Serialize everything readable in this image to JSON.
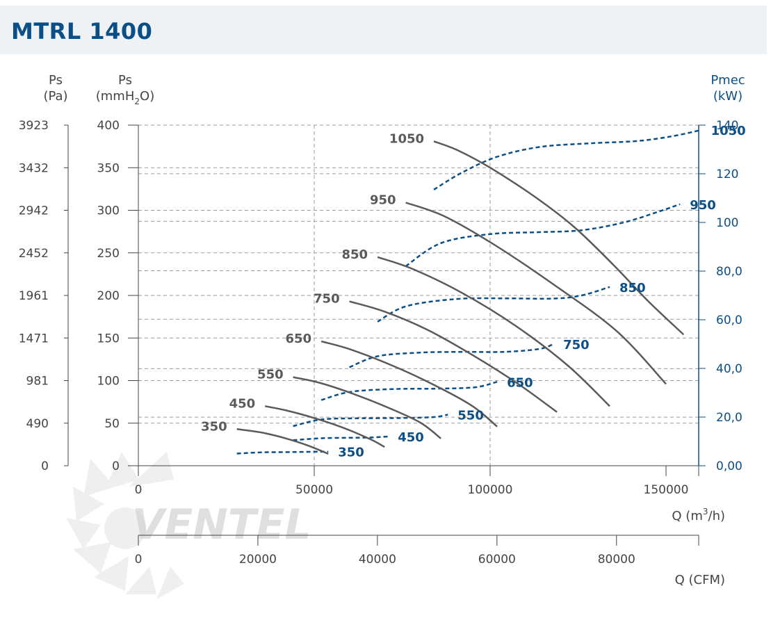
{
  "title": "MTRL 1400",
  "colors": {
    "header_bg": "#eef2f5",
    "title": "#0b4f86",
    "pressure_curve": "#5a5a5a",
    "power_curve": "#0b4f86",
    "axis": "#444444",
    "grid": "#9a9a9a",
    "watermark": "#c8c8c8",
    "watermark_accent": "#a9c3df"
  },
  "watermark": "VENTEL",
  "chart_data": {
    "type": "line",
    "axes": {
      "left_pa": {
        "label_line1": "Ps",
        "label_line2": "(Pa)",
        "ticks": [
          "3923",
          "3432",
          "2942",
          "2452",
          "1961",
          "1471",
          "981",
          "490",
          "0"
        ]
      },
      "left_mm": {
        "label_line1": "Ps",
        "label_line2_a": "(mmH",
        "label_line2_sub": "2",
        "label_line2_b": "O)",
        "range": [
          0,
          400
        ],
        "ticks": [
          400,
          350,
          300,
          250,
          200,
          150,
          100,
          50,
          0
        ]
      },
      "right_kw": {
        "label_line1": "Pmec",
        "label_line2": "(kW)",
        "range": [
          0,
          140
        ],
        "ticks": [
          "140",
          "120",
          "100",
          "80,0",
          "60,0",
          "40,0",
          "20,0",
          "0,00"
        ]
      },
      "x_m3h": {
        "label_a": "Q (m",
        "label_sup": "3",
        "label_b": "/h)",
        "range": [
          0,
          160000
        ],
        "ticks": [
          "0",
          "50000",
          "100000",
          "150000"
        ]
      },
      "x_cfm": {
        "label": "Q (CFM)",
        "range": [
          0,
          94170
        ],
        "ticks": [
          "0",
          "20000",
          "40000",
          "60000",
          "80000"
        ]
      }
    },
    "grid_vertical_at_q": [
      50000,
      100000
    ],
    "grid_horizontal_at_ps": [
      400,
      350,
      343,
      300,
      287,
      250,
      229,
      200,
      172,
      150,
      114,
      100,
      57,
      50
    ],
    "series_pressure": [
      {
        "name": "350",
        "points": [
          [
            28000,
            43
          ],
          [
            35000,
            39
          ],
          [
            42000,
            32
          ],
          [
            48000,
            24
          ],
          [
            54000,
            14
          ]
        ]
      },
      {
        "name": "450",
        "points": [
          [
            36000,
            70
          ],
          [
            42000,
            65
          ],
          [
            50000,
            56
          ],
          [
            58000,
            45
          ],
          [
            66000,
            31
          ],
          [
            70000,
            22
          ]
        ]
      },
      {
        "name": "550",
        "points": [
          [
            44000,
            104
          ],
          [
            51000,
            98
          ],
          [
            60000,
            86
          ],
          [
            70000,
            70
          ],
          [
            80000,
            51
          ],
          [
            86000,
            32
          ]
        ]
      },
      {
        "name": "650",
        "points": [
          [
            52000,
            146
          ],
          [
            60000,
            137
          ],
          [
            72000,
            118
          ],
          [
            84000,
            95
          ],
          [
            95000,
            70
          ],
          [
            102000,
            46
          ]
        ]
      },
      {
        "name": "750",
        "points": [
          [
            60000,
            193
          ],
          [
            70000,
            181
          ],
          [
            82000,
            160
          ],
          [
            95000,
            130
          ],
          [
            108000,
            96
          ],
          [
            119000,
            63
          ]
        ]
      },
      {
        "name": "850",
        "points": [
          [
            68000,
            245
          ],
          [
            78000,
            231
          ],
          [
            92000,
            203
          ],
          [
            107000,
            165
          ],
          [
            122000,
            118
          ],
          [
            134000,
            70
          ]
        ]
      },
      {
        "name": "950",
        "points": [
          [
            76000,
            309
          ],
          [
            87000,
            293
          ],
          [
            101000,
            260
          ],
          [
            118000,
            213
          ],
          [
            136000,
            158
          ],
          [
            150000,
            96
          ]
        ]
      },
      {
        "name": "1050",
        "points": [
          [
            84000,
            381
          ],
          [
            91000,
            370
          ],
          [
            100000,
            350
          ],
          [
            113000,
            315
          ],
          [
            124000,
            280
          ],
          [
            135000,
            236
          ],
          [
            145000,
            193
          ],
          [
            155000,
            154
          ]
        ]
      }
    ],
    "series_power": [
      {
        "name": "350",
        "points": [
          [
            28000,
            5.0
          ],
          [
            35000,
            5.5
          ],
          [
            42000,
            5.6
          ],
          [
            48000,
            5.7
          ],
          [
            54000,
            5.8
          ]
        ]
      },
      {
        "name": "450",
        "points": [
          [
            44000,
            10.5
          ],
          [
            52000,
            11.3
          ],
          [
            60000,
            11.5
          ],
          [
            66000,
            11.6
          ],
          [
            71000,
            12.0
          ]
        ]
      },
      {
        "name": "550",
        "points": [
          [
            44000,
            16.3
          ],
          [
            52000,
            19.0
          ],
          [
            62000,
            19.5
          ],
          [
            74000,
            19.6
          ],
          [
            84000,
            20.0
          ],
          [
            88000,
            21.0
          ]
        ]
      },
      {
        "name": "650",
        "points": [
          [
            52000,
            27.0
          ],
          [
            60000,
            30.3
          ],
          [
            72000,
            31.5
          ],
          [
            86000,
            31.7
          ],
          [
            96000,
            32.3
          ],
          [
            102000,
            34.5
          ]
        ]
      },
      {
        "name": "750",
        "points": [
          [
            60000,
            40.5
          ],
          [
            68000,
            45.0
          ],
          [
            80000,
            46.5
          ],
          [
            92000,
            46.8
          ],
          [
            104000,
            46.8
          ],
          [
            114000,
            48.0
          ],
          [
            118000,
            50.0
          ]
        ]
      },
      {
        "name": "850",
        "points": [
          [
            68000,
            59.2
          ],
          [
            76000,
            65.5
          ],
          [
            90000,
            68.5
          ],
          [
            104000,
            68.8
          ],
          [
            118000,
            68.7
          ],
          [
            126000,
            70.0
          ],
          [
            134000,
            73.5
          ]
        ]
      },
      {
        "name": "950",
        "points": [
          [
            76000,
            82.0
          ],
          [
            86000,
            91.5
          ],
          [
            100000,
            95.2
          ],
          [
            114000,
            96.0
          ],
          [
            126000,
            96.8
          ],
          [
            138000,
            100.0
          ],
          [
            148000,
            104.5
          ],
          [
            154000,
            107.5
          ]
        ]
      },
      {
        "name": "1050",
        "points": [
          [
            84000,
            113.5
          ],
          [
            92000,
            120.5
          ],
          [
            102000,
            127.0
          ],
          [
            114000,
            131.0
          ],
          [
            128000,
            132.5
          ],
          [
            142000,
            133.5
          ],
          [
            152000,
            135.5
          ],
          [
            160000,
            138.0
          ]
        ]
      }
    ]
  }
}
